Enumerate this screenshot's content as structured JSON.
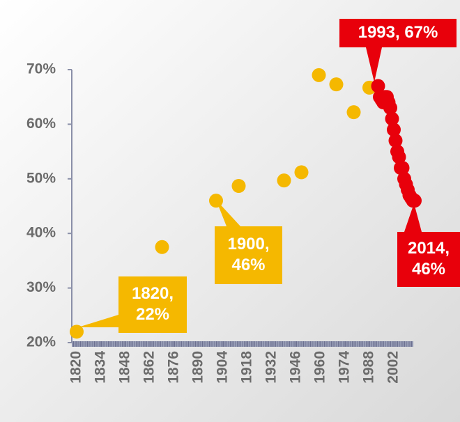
{
  "chart_data": {
    "type": "scatter",
    "series": [
      {
        "color": "#f5b800",
        "x": [
          1820,
          1869,
          1900,
          1913,
          1939,
          1949,
          1959,
          1969,
          1979,
          1988
        ],
        "values": [
          22,
          37.5,
          46,
          48.7,
          49.7,
          51.2,
          69,
          67.3,
          62.2,
          66.7
        ]
      },
      {
        "color": "#e8000b",
        "x": [
          1993,
          1994,
          1995,
          1996,
          1997,
          1998,
          1999,
          2000,
          2001,
          2002,
          2003,
          2004,
          2005,
          2006,
          2007,
          2008,
          2009,
          2010,
          2011,
          2012,
          2013,
          2014
        ],
        "values": [
          67,
          65,
          64.5,
          64,
          65,
          65,
          64,
          63,
          61,
          59,
          57,
          55,
          54,
          52,
          52,
          50,
          49,
          48,
          47,
          46.5,
          46,
          46
        ]
      }
    ],
    "xlim": [
      1820,
      2014
    ],
    "xticks": [
      1820,
      1834,
      1848,
      1862,
      1876,
      1890,
      1904,
      1918,
      1932,
      1946,
      1960,
      1974,
      1988,
      2002
    ],
    "ylim": [
      20,
      70
    ],
    "yticks": [
      {
        "value": 20,
        "label": "20%"
      },
      {
        "value": 30,
        "label": "30%"
      },
      {
        "value": 40,
        "label": "40%"
      },
      {
        "value": 50,
        "label": "50%"
      },
      {
        "value": 60,
        "label": "60%"
      },
      {
        "value": 70,
        "label": "70%"
      }
    ],
    "annotations": [
      {
        "lines": [
          "1820,",
          "22%"
        ],
        "color": "#f5b800"
      },
      {
        "lines": [
          "1900,",
          "46%"
        ],
        "color": "#f5b800"
      },
      {
        "lines": [
          "1993, 67%"
        ],
        "color": "#e8000b"
      },
      {
        "lines": [
          "2014,",
          "46%"
        ],
        "color": "#e8000b"
      }
    ]
  }
}
